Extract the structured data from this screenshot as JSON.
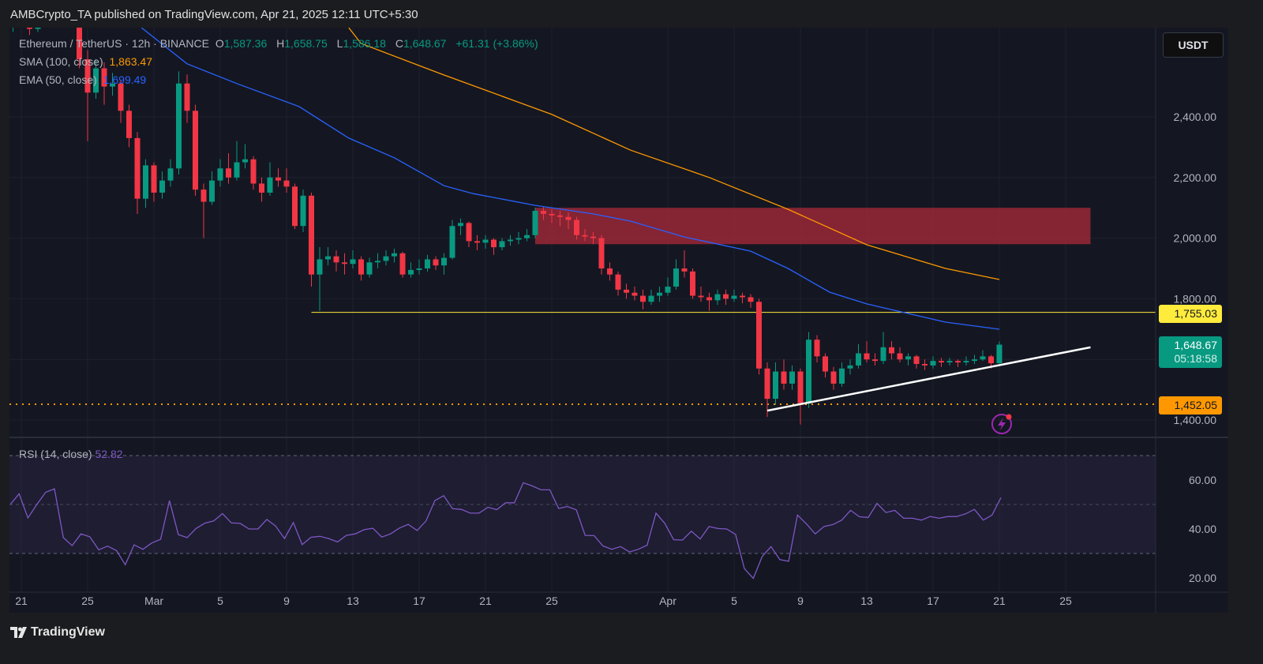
{
  "header": {
    "published": "AMBCrypto_TA published on TradingView.com, Apr 21, 2025 12:11 UTC+5:30"
  },
  "legend": {
    "symbol": "Ethereum / TetherUS · 12h · BINANCE",
    "o_label": "O",
    "o": "1,587.36",
    "h_label": "H",
    "h": "1,658.75",
    "l_label": "L",
    "l": "1,586.18",
    "c_label": "C",
    "c": "1,648.67",
    "change": "+61.31 (+3.86%)",
    "sma_label": "SMA (100, close)",
    "sma_value": "1,863.47",
    "ema_label": "EMA (50, close)",
    "ema_value": "1,699.49"
  },
  "currency_button": "USDT",
  "price_labels": {
    "yellow": "1,755.03",
    "last": "1,648.67",
    "countdown": "05:18:58",
    "orange": "1,452.05"
  },
  "rsi_legend": {
    "label": "RSI (14, close)",
    "value": "52.82"
  },
  "footer": {
    "brand": "TradingView"
  },
  "colors": {
    "up": "#089981",
    "down": "#f23645",
    "sma": "#ff9800",
    "ema": "#2962ff",
    "rsi": "#7e57c2",
    "zone": "#b22a3a",
    "level_yellow": "#ffeb3b",
    "level_orange": "#ff9800",
    "trendline": "#ffffff"
  },
  "icons": {
    "alert": "lightning-alert-icon",
    "logo": "tradingview-logo-icon"
  },
  "chart_data": {
    "type": "candlestick",
    "title": "Ethereum / TetherUS · 12h · BINANCE",
    "interval": "12h",
    "first_candle": "2025-02-20T12:00:00Z",
    "ylim": [
      1370,
      2720
    ],
    "price_ticks": [
      {
        "v": 2400,
        "t": "2,400.00"
      },
      {
        "v": 2200,
        "t": "2,200.00"
      },
      {
        "v": 2000,
        "t": "2,000.00"
      },
      {
        "v": 1800,
        "t": "1,800.00"
      },
      {
        "v": 1600,
        "t": ""
      },
      {
        "v": 1400,
        "t": "1,400.00"
      }
    ],
    "date_ticks": [
      {
        "d": "2025-02-21",
        "t": "21"
      },
      {
        "d": "2025-02-25",
        "t": "25"
      },
      {
        "d": "2025-03-01",
        "t": "Mar"
      },
      {
        "d": "2025-03-05",
        "t": "5"
      },
      {
        "d": "2025-03-09",
        "t": "9"
      },
      {
        "d": "2025-03-13",
        "t": "13"
      },
      {
        "d": "2025-03-17",
        "t": "17"
      },
      {
        "d": "2025-03-21",
        "t": "21"
      },
      {
        "d": "2025-03-25",
        "t": "25"
      },
      {
        "d": "2025-04-01",
        "t": "Apr"
      },
      {
        "d": "2025-04-05",
        "t": "5"
      },
      {
        "d": "2025-04-09",
        "t": "9"
      },
      {
        "d": "2025-04-13",
        "t": "13"
      },
      {
        "d": "2025-04-17",
        "t": "17"
      },
      {
        "d": "2025-04-21",
        "t": "21"
      },
      {
        "d": "2025-04-25",
        "t": "25"
      }
    ],
    "candles_ohlc": [
      [
        2700,
        2745,
        2680,
        2715
      ],
      [
        2715,
        2760,
        2700,
        2735
      ],
      [
        2735,
        2750,
        2670,
        2690
      ],
      [
        2690,
        2755,
        2680,
        2740
      ],
      [
        2740,
        2790,
        2725,
        2765
      ],
      [
        2765,
        2830,
        2750,
        2790
      ],
      [
        2790,
        2830,
        2770,
        2800
      ],
      [
        2800,
        2820,
        2740,
        2770
      ],
      [
        2770,
        2780,
        2560,
        2590
      ],
      [
        2590,
        2620,
        2320,
        2480
      ],
      [
        2480,
        2590,
        2460,
        2560
      ],
      [
        2560,
        2580,
        2440,
        2500
      ],
      [
        2500,
        2545,
        2470,
        2510
      ],
      [
        2510,
        2520,
        2380,
        2420
      ],
      [
        2420,
        2440,
        2300,
        2330
      ],
      [
        2330,
        2350,
        2080,
        2130
      ],
      [
        2130,
        2260,
        2100,
        2240
      ],
      [
        2240,
        2250,
        2120,
        2150
      ],
      [
        2150,
        2220,
        2130,
        2190
      ],
      [
        2190,
        2260,
        2170,
        2230
      ],
      [
        2230,
        2550,
        2210,
        2510
      ],
      [
        2510,
        2540,
        2380,
        2420
      ],
      [
        2420,
        2440,
        2140,
        2160
      ],
      [
        2160,
        2180,
        2000,
        2120
      ],
      [
        2120,
        2220,
        2110,
        2190
      ],
      [
        2190,
        2260,
        2170,
        2230
      ],
      [
        2230,
        2280,
        2180,
        2200
      ],
      [
        2200,
        2320,
        2190,
        2250
      ],
      [
        2250,
        2310,
        2230,
        2260
      ],
      [
        2260,
        2270,
        2160,
        2180
      ],
      [
        2180,
        2200,
        2120,
        2150
      ],
      [
        2150,
        2250,
        2140,
        2200
      ],
      [
        2200,
        2230,
        2170,
        2190
      ],
      [
        2190,
        2230,
        2150,
        2170
      ],
      [
        2170,
        2180,
        2030,
        2040
      ],
      [
        2040,
        2160,
        2020,
        2140
      ],
      [
        2140,
        2150,
        1840,
        1880
      ],
      [
        1880,
        1970,
        1760,
        1930
      ],
      [
        1930,
        1970,
        1910,
        1940
      ],
      [
        1940,
        1960,
        1890,
        1920
      ],
      [
        1920,
        1950,
        1880,
        1915
      ],
      [
        1915,
        1960,
        1900,
        1930
      ],
      [
        1930,
        1940,
        1860,
        1880
      ],
      [
        1880,
        1935,
        1870,
        1920
      ],
      [
        1920,
        1950,
        1900,
        1925
      ],
      [
        1925,
        1960,
        1910,
        1940
      ],
      [
        1940,
        1965,
        1920,
        1950
      ],
      [
        1950,
        1955,
        1870,
        1880
      ],
      [
        1880,
        1920,
        1870,
        1895
      ],
      [
        1895,
        1930,
        1880,
        1900
      ],
      [
        1900,
        1945,
        1890,
        1930
      ],
      [
        1930,
        1940,
        1895,
        1910
      ],
      [
        1910,
        1950,
        1880,
        1935
      ],
      [
        1935,
        2060,
        1930,
        2040
      ],
      [
        2040,
        2065,
        2010,
        2050
      ],
      [
        2050,
        2055,
        1970,
        1990
      ],
      [
        1990,
        2010,
        1960,
        1985
      ],
      [
        1985,
        2010,
        1965,
        1995
      ],
      [
        1995,
        2000,
        1945,
        1970
      ],
      [
        1970,
        2000,
        1960,
        1990
      ],
      [
        1990,
        2010,
        1975,
        1995
      ],
      [
        1995,
        2020,
        1980,
        2000
      ],
      [
        2000,
        2030,
        1990,
        2010
      ],
      [
        2010,
        2100,
        2000,
        2090
      ],
      [
        2090,
        2105,
        2060,
        2080
      ],
      [
        2080,
        2095,
        2050,
        2075
      ],
      [
        2075,
        2090,
        2040,
        2070
      ],
      [
        2070,
        2085,
        2030,
        2060
      ],
      [
        2060,
        2070,
        1995,
        2010
      ],
      [
        2010,
        2030,
        1990,
        2005
      ],
      [
        2005,
        2020,
        1980,
        2000
      ],
      [
        2000,
        2010,
        1880,
        1900
      ],
      [
        1900,
        1920,
        1860,
        1880
      ],
      [
        1880,
        1890,
        1810,
        1830
      ],
      [
        1830,
        1850,
        1800,
        1820
      ],
      [
        1820,
        1840,
        1795,
        1810
      ],
      [
        1810,
        1830,
        1765,
        1790
      ],
      [
        1790,
        1830,
        1780,
        1810
      ],
      [
        1810,
        1840,
        1790,
        1820
      ],
      [
        1820,
        1870,
        1810,
        1840
      ],
      [
        1840,
        1930,
        1830,
        1900
      ],
      [
        1900,
        1960,
        1870,
        1890
      ],
      [
        1890,
        1900,
        1800,
        1810
      ],
      [
        1810,
        1840,
        1790,
        1805
      ],
      [
        1805,
        1820,
        1760,
        1795
      ],
      [
        1795,
        1830,
        1780,
        1815
      ],
      [
        1815,
        1830,
        1780,
        1800
      ],
      [
        1800,
        1830,
        1790,
        1810
      ],
      [
        1810,
        1820,
        1785,
        1805
      ],
      [
        1805,
        1815,
        1770,
        1790
      ],
      [
        1790,
        1800,
        1550,
        1570
      ],
      [
        1570,
        1590,
        1410,
        1470
      ],
      [
        1470,
        1590,
        1450,
        1560
      ],
      [
        1560,
        1600,
        1500,
        1520
      ],
      [
        1520,
        1580,
        1500,
        1560
      ],
      [
        1560,
        1570,
        1385,
        1455
      ],
      [
        1455,
        1690,
        1440,
        1665
      ],
      [
        1665,
        1680,
        1590,
        1610
      ],
      [
        1610,
        1620,
        1540,
        1560
      ],
      [
        1560,
        1575,
        1500,
        1520
      ],
      [
        1520,
        1590,
        1510,
        1570
      ],
      [
        1570,
        1600,
        1550,
        1580
      ],
      [
        1580,
        1650,
        1570,
        1620
      ],
      [
        1620,
        1660,
        1590,
        1600
      ],
      [
        1600,
        1620,
        1580,
        1595
      ],
      [
        1595,
        1690,
        1585,
        1640
      ],
      [
        1640,
        1660,
        1600,
        1620
      ],
      [
        1620,
        1640,
        1590,
        1600
      ],
      [
        1600,
        1620,
        1580,
        1610
      ],
      [
        1610,
        1615,
        1570,
        1585
      ],
      [
        1585,
        1600,
        1565,
        1580
      ],
      [
        1580,
        1610,
        1570,
        1595
      ],
      [
        1595,
        1605,
        1575,
        1590
      ],
      [
        1590,
        1605,
        1580,
        1595
      ],
      [
        1595,
        1600,
        1575,
        1590
      ],
      [
        1590,
        1610,
        1580,
        1595
      ],
      [
        1595,
        1615,
        1585,
        1600
      ],
      [
        1600,
        1630,
        1595,
        1610
      ],
      [
        1610,
        1615,
        1570,
        1587.36
      ],
      [
        1587.36,
        1658.75,
        1586.18,
        1648.67
      ]
    ],
    "sma_100": [
      [
        "2025-03-12T18:00:00Z",
        2694
      ],
      [
        "2025-03-13T12:00:00Z",
        2642
      ],
      [
        "2025-03-18T12:00:00Z",
        2538
      ],
      [
        "2025-03-25T00:00:00Z",
        2408
      ],
      [
        "2025-03-29T18:00:00Z",
        2290
      ],
      [
        "2025-04-03T12:00:00Z",
        2200
      ],
      [
        "2025-04-08T06:00:00Z",
        2095
      ],
      [
        "2025-04-13T00:00:00Z",
        1978
      ],
      [
        "2025-04-17T18:00:00Z",
        1900
      ],
      [
        "2025-04-21T00:00:00Z",
        1863.47
      ]
    ],
    "ema_50": [
      [
        "2025-02-28T06:00:00Z",
        2694
      ],
      [
        "2025-03-03T00:00:00Z",
        2575
      ],
      [
        "2025-03-06T00:00:00Z",
        2510
      ],
      [
        "2025-03-09T18:00:00Z",
        2434
      ],
      [
        "2025-03-12T18:00:00Z",
        2330
      ],
      [
        "2025-03-15T12:00:00Z",
        2265
      ],
      [
        "2025-03-18T12:00:00Z",
        2173
      ],
      [
        "2025-03-20T06:00:00Z",
        2147
      ],
      [
        "2025-03-24T00:00:00Z",
        2108
      ],
      [
        "2025-03-27T12:00:00Z",
        2080
      ],
      [
        "2025-03-29T18:00:00Z",
        2056
      ],
      [
        "2025-04-02T00:00:00Z",
        2004
      ],
      [
        "2025-04-06T00:00:00Z",
        1957
      ],
      [
        "2025-04-08T06:00:00Z",
        1900
      ],
      [
        "2025-04-10T18:00:00Z",
        1822
      ],
      [
        "2025-04-13T00:00:00Z",
        1783
      ],
      [
        "2025-04-17T18:00:00Z",
        1723
      ],
      [
        "2025-04-21T00:00:00Z",
        1699.49
      ]
    ],
    "resistance_zone": {
      "from": "2025-03-24T00:00:00Z",
      "to": "2025-04-26T12:00:00Z",
      "low": 1980,
      "high": 2100
    },
    "horizontal_levels": [
      {
        "price": 1755.03,
        "from": "2025-03-10T12:00:00Z",
        "style": "solid",
        "color": "yellow"
      },
      {
        "price": 1452.05,
        "style": "dotted",
        "color": "orange"
      }
    ],
    "trendline": {
      "from": [
        "2025-04-07T00:00:00Z",
        1431
      ],
      "to": [
        "2025-04-26T12:00:00Z",
        1640
      ]
    },
    "rsi": {
      "ticks": [
        {
          "v": 60,
          "t": "60.00"
        },
        {
          "v": 40,
          "t": "40.00"
        },
        {
          "v": 20,
          "t": "20.00"
        }
      ],
      "bands": [
        70,
        50,
        30
      ],
      "values": [
        50,
        54.4,
        44.5,
        50,
        55,
        56.4,
        36.5,
        33.2,
        38,
        36.8,
        31.5,
        33,
        31.2,
        25.4,
        33.5,
        31.7,
        34.3,
        35.8,
        51.6,
        37.7,
        36.5,
        40.2,
        42.4,
        43.3,
        46.3,
        42.5,
        42.3,
        40,
        40,
        43.9,
        41.2,
        36.1,
        42.6,
        33.6,
        36.6,
        37,
        36.1,
        34.7,
        37.4,
        38,
        39.7,
        40.3,
        36.7,
        38,
        40.4,
        41.9,
        39.4,
        43.3,
        51.6,
        53.6,
        48.3,
        48,
        46.5,
        46.5,
        48.9,
        47.9,
        50.7,
        50.7,
        58.9,
        57.6,
        56,
        56,
        48.4,
        49.2,
        47.8,
        37.4,
        37.3,
        33.1,
        31.7,
        32.8,
        30.6,
        31.7,
        33.4,
        46.5,
        42.3,
        35.6,
        35.5,
        39.1,
        35.9,
        41,
        40.2,
        40,
        37.8,
        23.8,
        19.8,
        28.7,
        32.8,
        27.5,
        26.8,
        45.7,
        42.1,
        38,
        41,
        41.8,
        43.6,
        47.6,
        45,
        44.7,
        50.5,
        46.7,
        47.6,
        44.4,
        44.4,
        43.6,
        45.1,
        44.4,
        45.1,
        45.1,
        46.2,
        48,
        43.6,
        45.7,
        52.82
      ]
    }
  }
}
